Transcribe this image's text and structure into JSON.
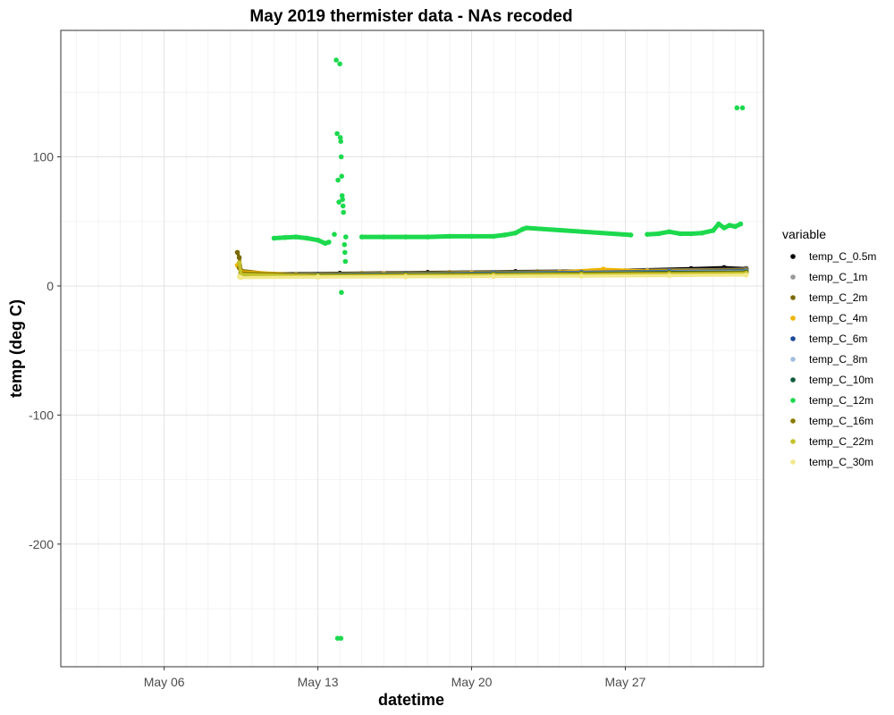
{
  "chart_data": {
    "type": "scatter",
    "title": "May 2019 thermister data - NAs recoded",
    "xlabel": "datetime",
    "ylabel": "temp (deg C)",
    "x_axis_type": "date",
    "xlim": [
      "2019-05-01T07:00",
      "2019-06-02T07:00"
    ],
    "ylim": [
      -295,
      198
    ],
    "x_ticks": [
      {
        "value": "2019-05-06",
        "label": "May 06"
      },
      {
        "value": "2019-05-13",
        "label": "May 13"
      },
      {
        "value": "2019-05-20",
        "label": "May 20"
      },
      {
        "value": "2019-05-27",
        "label": "May 27"
      }
    ],
    "y_ticks": [
      {
        "value": 100,
        "label": "100"
      },
      {
        "value": 0,
        "label": "0"
      },
      {
        "value": -100,
        "label": "-100"
      },
      {
        "value": -200,
        "label": "-200"
      }
    ],
    "grid": true,
    "legend_title": "variable",
    "legend_position": "right",
    "series": [
      {
        "name": "temp_C_0.5m",
        "color": "#000000",
        "points": [
          [
            "2019-05-09T12:00",
            10
          ],
          [
            "2019-05-10T12:00",
            9.5
          ],
          [
            "2019-05-14T00:00",
            9.8
          ],
          [
            "2019-05-18T00:00",
            10.5
          ],
          [
            "2019-05-22T00:00",
            11.2
          ],
          [
            "2019-05-26T00:00",
            11.8
          ],
          [
            "2019-05-30T00:00",
            13.5
          ],
          [
            "2019-05-31T12:00",
            14.2
          ],
          [
            "2019-06-01T12:00",
            13.5
          ]
        ]
      },
      {
        "name": "temp_C_1m",
        "color": "#999999",
        "points": [
          [
            "2019-05-09T12:00",
            9.8
          ],
          [
            "2019-05-12T00:00",
            9.3
          ],
          [
            "2019-05-16T00:00",
            9.8
          ],
          [
            "2019-05-20T00:00",
            10.6
          ],
          [
            "2019-05-24T00:00",
            11.2
          ],
          [
            "2019-05-28T00:00",
            12.2
          ],
          [
            "2019-06-01T12:00",
            13
          ]
        ]
      },
      {
        "name": "temp_C_2m",
        "color": "#7b6a00",
        "points": [
          [
            "2019-05-09T08:00",
            26
          ],
          [
            "2019-05-09T10:00",
            22
          ],
          [
            "2019-05-09T12:00",
            12
          ],
          [
            "2019-05-11T00:00",
            9.2
          ],
          [
            "2019-05-15T00:00",
            9.6
          ],
          [
            "2019-05-19T00:00",
            10.3
          ],
          [
            "2019-05-23T00:00",
            11
          ],
          [
            "2019-05-27T00:00",
            11.8
          ],
          [
            "2019-06-01T12:00",
            12.5
          ]
        ]
      },
      {
        "name": "temp_C_4m",
        "color": "#f0b400",
        "points": [
          [
            "2019-05-09T08:00",
            16
          ],
          [
            "2019-05-09T12:00",
            11
          ],
          [
            "2019-05-12T00:00",
            9
          ],
          [
            "2019-05-16T00:00",
            9.4
          ],
          [
            "2019-05-20T00:00",
            10
          ],
          [
            "2019-05-24T00:00",
            10.8
          ],
          [
            "2019-05-26T00:00",
            13
          ],
          [
            "2019-05-28T00:00",
            11.5
          ],
          [
            "2019-06-01T12:00",
            12
          ]
        ]
      },
      {
        "name": "temp_C_6m",
        "color": "#1d4a9c",
        "points": [
          [
            "2019-05-09T12:00",
            9.5
          ],
          [
            "2019-05-13T00:00",
            8.8
          ],
          [
            "2019-05-17T00:00",
            9.3
          ],
          [
            "2019-05-21T00:00",
            10
          ],
          [
            "2019-05-25T00:00",
            10.6
          ],
          [
            "2019-05-29T00:00",
            11.3
          ],
          [
            "2019-06-01T12:00",
            11.8
          ]
        ]
      },
      {
        "name": "temp_C_8m",
        "color": "#a3bde0",
        "points": [
          [
            "2019-05-09T12:00",
            9
          ],
          [
            "2019-05-13T00:00",
            8.6
          ],
          [
            "2019-05-17T00:00",
            9
          ],
          [
            "2019-05-21T00:00",
            9.6
          ],
          [
            "2019-05-25T00:00",
            10.2
          ],
          [
            "2019-05-29T00:00",
            10.9
          ],
          [
            "2019-06-01T12:00",
            11.3
          ]
        ]
      },
      {
        "name": "temp_C_10m",
        "color": "#0b5a3a",
        "points": [
          [
            "2019-05-09T12:00",
            8.8
          ],
          [
            "2019-05-13T00:00",
            8.4
          ],
          [
            "2019-05-17T00:00",
            8.8
          ],
          [
            "2019-05-21T00:00",
            9.3
          ],
          [
            "2019-05-25T00:00",
            9.9
          ],
          [
            "2019-05-29T00:00",
            10.5
          ],
          [
            "2019-06-01T12:00",
            10.9
          ]
        ]
      },
      {
        "name": "temp_C_12m",
        "color": "#1cd94d",
        "points": [
          [
            "2019-05-11T00:00",
            37
          ],
          [
            "2019-05-11T12:00",
            37.5
          ],
          [
            "2019-05-12T00:00",
            38
          ],
          [
            "2019-05-12T12:00",
            37
          ],
          [
            "2019-05-13T00:00",
            35.5
          ],
          [
            "2019-05-13T08:00",
            33
          ],
          [
            "2019-05-13T12:00",
            34
          ],
          [
            "2019-05-13T18:00",
            40
          ],
          [
            "2019-05-13T20:00",
            175
          ],
          [
            "2019-05-13T21:00",
            118
          ],
          [
            "2019-05-13T22:00",
            82
          ],
          [
            "2019-05-13T23:00",
            65
          ],
          [
            "2019-05-14T00:00",
            172
          ],
          [
            "2019-05-14T00:30",
            115
          ],
          [
            "2019-05-14T01:00",
            112
          ],
          [
            "2019-05-14T01:30",
            100
          ],
          [
            "2019-05-14T02:00",
            85
          ],
          [
            "2019-05-14T02:30",
            70
          ],
          [
            "2019-05-14T03:00",
            67
          ],
          [
            "2019-05-14T03:30",
            62
          ],
          [
            "2019-05-14T04:00",
            57
          ],
          [
            "2019-05-14T05:00",
            32
          ],
          [
            "2019-05-14T05:30",
            26
          ],
          [
            "2019-05-14T06:00",
            19
          ],
          [
            "2019-05-14T01:45",
            -5
          ],
          [
            "2019-05-13T21:30",
            -273
          ],
          [
            "2019-05-14T01:10",
            -273
          ],
          [
            "2019-05-14T06:30",
            38
          ],
          [
            "2019-05-15T00:00",
            38
          ],
          [
            "2019-05-16T00:00",
            38
          ],
          [
            "2019-05-17T00:00",
            38
          ],
          [
            "2019-05-18T00:00",
            38
          ],
          [
            "2019-05-19T00:00",
            38.5
          ],
          [
            "2019-05-20T00:00",
            38.5
          ],
          [
            "2019-05-21T00:00",
            38.5
          ],
          [
            "2019-05-21T12:00",
            39.5
          ],
          [
            "2019-05-22T00:00",
            41
          ],
          [
            "2019-05-22T08:00",
            44
          ],
          [
            "2019-05-22T12:00",
            45
          ],
          [
            "2019-05-27T06:00",
            39.5
          ],
          [
            "2019-05-28T00:00",
            40
          ],
          [
            "2019-05-28T12:00",
            40.5
          ],
          [
            "2019-05-29T00:00",
            42
          ],
          [
            "2019-05-29T12:00",
            40.5
          ],
          [
            "2019-05-30T00:00",
            40.5
          ],
          [
            "2019-05-30T12:00",
            41
          ],
          [
            "2019-05-31T00:00",
            43
          ],
          [
            "2019-05-31T06:00",
            48
          ],
          [
            "2019-05-31T12:00",
            45
          ],
          [
            "2019-05-31T18:00",
            47
          ],
          [
            "2019-06-01T00:00",
            46
          ],
          [
            "2019-06-01T06:00",
            48
          ],
          [
            "2019-06-01T02:00",
            138
          ],
          [
            "2019-06-01T08:00",
            138
          ]
        ]
      },
      {
        "name": "temp_C_16m",
        "color": "#8a7a00",
        "points": [
          [
            "2019-05-09T10:00",
            14
          ],
          [
            "2019-05-09T12:00",
            10
          ],
          [
            "2019-05-13T00:00",
            8.2
          ],
          [
            "2019-05-17T00:00",
            8.6
          ],
          [
            "2019-05-21T00:00",
            9
          ],
          [
            "2019-05-25T00:00",
            9.5
          ],
          [
            "2019-05-29T00:00",
            10
          ],
          [
            "2019-06-01T12:00",
            10.4
          ]
        ]
      },
      {
        "name": "temp_C_22m",
        "color": "#c4c12a",
        "points": [
          [
            "2019-05-09T10:00",
            18
          ],
          [
            "2019-05-09T12:00",
            9
          ],
          [
            "2019-05-13T00:00",
            7.8
          ],
          [
            "2019-05-17T00:00",
            8.1
          ],
          [
            "2019-05-21T00:00",
            8.5
          ],
          [
            "2019-05-25T00:00",
            8.9
          ],
          [
            "2019-05-29T00:00",
            9.4
          ],
          [
            "2019-06-01T12:00",
            9.8
          ]
        ]
      },
      {
        "name": "temp_C_30m",
        "color": "#f2e88c",
        "points": [
          [
            "2019-05-09T10:00",
            7
          ],
          [
            "2019-05-09T12:00",
            6.5
          ],
          [
            "2019-05-13T00:00",
            6.8
          ],
          [
            "2019-05-17T00:00",
            7
          ],
          [
            "2019-05-21T00:00",
            7.3
          ],
          [
            "2019-05-25T00:00",
            7.6
          ],
          [
            "2019-05-29T00:00",
            8
          ],
          [
            "2019-06-01T12:00",
            8.4
          ]
        ]
      }
    ]
  }
}
